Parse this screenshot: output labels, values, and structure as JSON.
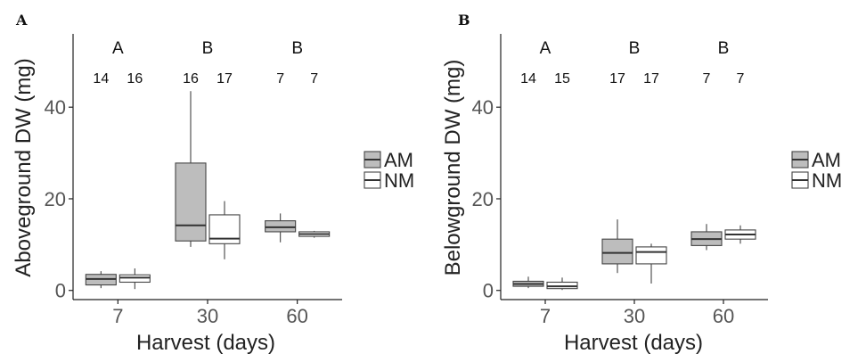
{
  "colors": {
    "AM": "#bdbdbd",
    "NM": "#ffffff"
  },
  "legend": {
    "items": [
      {
        "key": "AM",
        "label": "AM"
      },
      {
        "key": "NM",
        "label": "NM"
      }
    ]
  },
  "chart_data": [
    {
      "type": "boxplot",
      "panel_label": "A",
      "xlabel": "Harvest (days)",
      "ylabel": "Aboveground DW (mg)",
      "categories": [
        "7",
        "30",
        "60"
      ],
      "ylim": [
        -2,
        56
      ],
      "yticks": [
        0,
        20,
        40
      ],
      "group_letters": [
        "A",
        "B",
        "B"
      ],
      "counts": [
        [
          "14",
          "16"
        ],
        [
          "16",
          "17"
        ],
        [
          "7",
          "7"
        ]
      ],
      "series": [
        {
          "name": "AM",
          "boxes": [
            {
              "min": 0.5,
              "q1": 1.2,
              "median": 2.5,
              "q3": 3.5,
              "max": 4.2
            },
            {
              "min": 9.5,
              "q1": 10.8,
              "median": 14.2,
              "q3": 27.8,
              "max": 43.5
            },
            {
              "min": 10.5,
              "q1": 12.8,
              "median": 13.8,
              "q3": 15.2,
              "max": 16.8
            }
          ]
        },
        {
          "name": "NM",
          "boxes": [
            {
              "min": 0.3,
              "q1": 1.8,
              "median": 2.8,
              "q3": 3.4,
              "max": 4.8
            },
            {
              "min": 6.8,
              "q1": 10.2,
              "median": 11.3,
              "q3": 16.5,
              "max": 19.5
            },
            {
              "min": 11.5,
              "q1": 11.8,
              "median": 12.3,
              "q3": 12.8,
              "max": 13.0
            }
          ]
        }
      ]
    },
    {
      "type": "boxplot",
      "panel_label": "B",
      "xlabel": "Harvest (days)",
      "ylabel": "Belowground DW (mg)",
      "categories": [
        "7",
        "30",
        "60"
      ],
      "ylim": [
        -2,
        56
      ],
      "yticks": [
        0,
        20,
        40
      ],
      "group_letters": [
        "A",
        "B",
        "B"
      ],
      "counts": [
        [
          "14",
          "15"
        ],
        [
          "17",
          "17"
        ],
        [
          "7",
          "7"
        ]
      ],
      "series": [
        {
          "name": "AM",
          "boxes": [
            {
              "min": 0.5,
              "q1": 0.9,
              "median": 1.4,
              "q3": 2.0,
              "max": 3.0
            },
            {
              "min": 3.8,
              "q1": 5.8,
              "median": 8.2,
              "q3": 11.2,
              "max": 15.5
            },
            {
              "min": 8.8,
              "q1": 9.8,
              "median": 11.2,
              "q3": 12.8,
              "max": 14.5
            }
          ]
        },
        {
          "name": "NM",
          "boxes": [
            {
              "min": 0.1,
              "q1": 0.4,
              "median": 0.9,
              "q3": 1.8,
              "max": 2.8
            },
            {
              "min": 1.5,
              "q1": 5.8,
              "median": 8.4,
              "q3": 9.5,
              "max": 10.2
            },
            {
              "min": 10.2,
              "q1": 11.2,
              "median": 12.2,
              "q3": 13.2,
              "max": 14.2
            }
          ]
        }
      ]
    }
  ]
}
